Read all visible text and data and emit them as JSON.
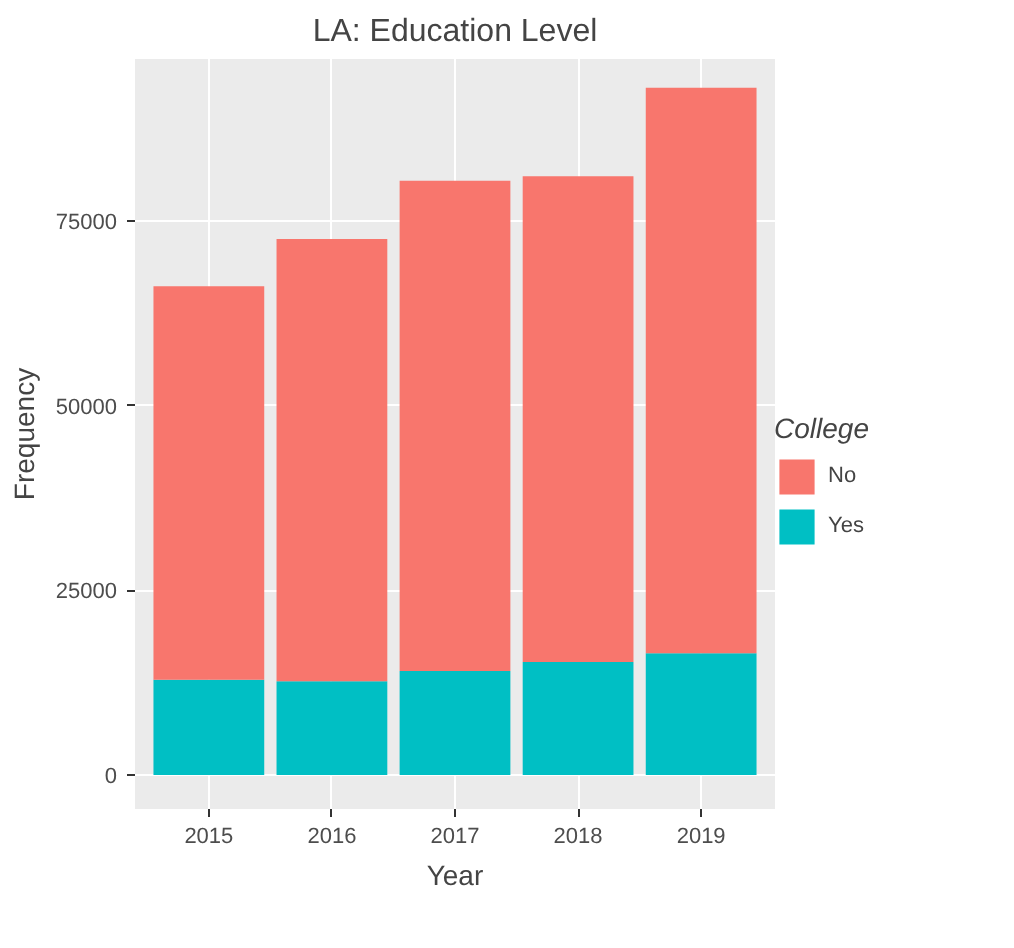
{
  "chart_data": {
    "type": "bar",
    "title": "LA: Education Level",
    "xlabel": "Year",
    "ylabel": "Frequency",
    "legend_title": "College",
    "categories": [
      "2015",
      "2016",
      "2017",
      "2018",
      "2019"
    ],
    "stacked": true,
    "series": [
      {
        "name": "Yes",
        "color": "#00bfc4",
        "values": [
          12900,
          12700,
          14100,
          15300,
          16500
        ]
      },
      {
        "name": "No",
        "color": "#f8766d",
        "values": [
          53300,
          59900,
          66400,
          65800,
          76600
        ]
      }
    ],
    "ylim": [
      -4600,
      97000
    ],
    "yticks": [
      0,
      25000,
      50000,
      75000
    ],
    "grid": true,
    "legend": "right"
  }
}
